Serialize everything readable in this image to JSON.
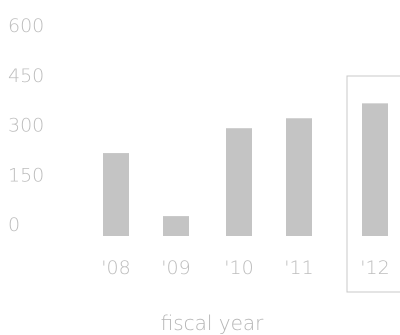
{
  "chart_data": {
    "type": "bar",
    "title": "",
    "xlabel": "fiscal year",
    "ylabel": "",
    "categories": [
      "'08",
      "'09",
      "'10",
      "'11",
      "'12"
    ],
    "values": [
      250,
      60,
      325,
      355,
      400
    ],
    "ylim": [
      0,
      600
    ],
    "yticks": [
      "0",
      "150",
      "300",
      "450",
      "600"
    ],
    "ytick_values": [
      0,
      150,
      300,
      450,
      600
    ],
    "grid": false,
    "legend": "none",
    "highlighted_category": "'12",
    "colors": {
      "bar": "#c4c4c4",
      "text": "#bdbdbd",
      "highlight_border": "#c8c8c8"
    }
  }
}
